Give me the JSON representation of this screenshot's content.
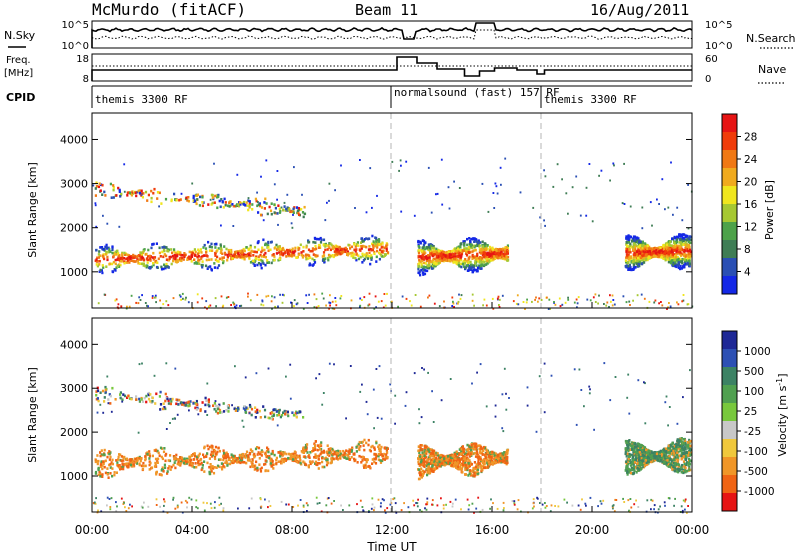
{
  "header": {
    "station": "McMurdo (fitACF)",
    "beam": "Beam 11",
    "date": "16/Aug/2011"
  },
  "nsky_panel": {
    "left_label": "N.Sky",
    "right_label": "N.Search",
    "left_ticks": [
      "10^5",
      "10^0"
    ],
    "right_ticks": [
      "10^5",
      "10^0"
    ]
  },
  "freq_panel": {
    "left_label_1": "Freq.",
    "left_label_2": "[MHz]",
    "right_label": "Nave",
    "left_ticks": [
      "18",
      "8"
    ],
    "right_ticks": [
      "60",
      "0"
    ]
  },
  "cpid": {
    "label": "CPID",
    "segments": [
      {
        "text": "themis 3300 RF",
        "start_hour": 0
      },
      {
        "text": "normalsound (fast) 157 RF",
        "start_hour": 12
      },
      {
        "text": "themis 3300 RF",
        "start_hour": 18
      }
    ]
  },
  "colors": {
    "power_scale": [
      "#1428e6",
      "#2a4fb4",
      "#3f7d55",
      "#4da24a",
      "#a6c832",
      "#f0e61e",
      "#f0aa1e",
      "#f07814",
      "#f03c0a",
      "#e61414"
    ],
    "velocity_scale": [
      "#1e2896",
      "#2d50b4",
      "#3c8264",
      "#50a050",
      "#78c83c",
      "#c8c8c8",
      "#f0c83c",
      "#f09628",
      "#f06414",
      "#e61414"
    ],
    "dashed_line": "#b4b4b4"
  },
  "chart_data": [
    {
      "type": "heatmap",
      "title": "",
      "xlabel": "",
      "ylabel": "Slant Range [km]",
      "xlim": [
        0,
        24
      ],
      "ylim": [
        180,
        4600
      ],
      "y_ticks": [
        "1000",
        "2000",
        "3000",
        "4000"
      ],
      "colorbar": {
        "label": "Power [dB]",
        "ticks": [
          "4",
          "8",
          "12",
          "16",
          "20",
          "24",
          "28"
        ],
        "range": [
          0,
          30
        ]
      },
      "scatter_bands": [
        {
          "start_hour": 0.1,
          "end_hour": 11.8,
          "center_km": [
            1300,
            1550
          ],
          "width_km": 420,
          "level": "strong"
        },
        {
          "start_hour": 13.0,
          "end_hour": 16.6,
          "center_km": [
            1350,
            1450
          ],
          "width_km": 500,
          "level": "strong"
        },
        {
          "start_hour": 21.3,
          "end_hour": 23.9,
          "center_km": [
            1450,
            1500
          ],
          "width_km": 500,
          "level": "strong"
        },
        {
          "start_hour": 0.1,
          "end_hour": 8.5,
          "center_km": [
            2900,
            2400
          ],
          "width_km": 250,
          "level": "weak"
        }
      ]
    },
    {
      "type": "heatmap",
      "title": "",
      "xlabel": "Time UT",
      "ylabel": "Slant Range [km]",
      "xlim": [
        0,
        24
      ],
      "ylim": [
        180,
        4600
      ],
      "x_ticks": [
        "00:00",
        "04:00",
        "08:00",
        "12:00",
        "16:00",
        "20:00",
        "00:00"
      ],
      "y_ticks": [
        "1000",
        "2000",
        "3000",
        "4000"
      ],
      "colorbar": {
        "label": "Velocity [m s^-1]",
        "ticks": [
          "1000",
          "500",
          "100",
          "25",
          "-25",
          "-100",
          "-500",
          "-1000"
        ]
      },
      "scatter_bands": [
        {
          "start_hour": 0.1,
          "end_hour": 11.8,
          "center_km": [
            1300,
            1550
          ],
          "width_km": 420,
          "level": "negative"
        },
        {
          "start_hour": 13.0,
          "end_hour": 16.6,
          "center_km": [
            1350,
            1450
          ],
          "width_km": 500,
          "level": "negative"
        },
        {
          "start_hour": 21.3,
          "end_hour": 23.9,
          "center_km": [
            1450,
            1500
          ],
          "width_km": 500,
          "level": "positive"
        },
        {
          "start_hour": 0.1,
          "end_hour": 8.5,
          "center_km": [
            2900,
            2400
          ],
          "width_km": 250,
          "level": "mixed"
        }
      ]
    }
  ]
}
